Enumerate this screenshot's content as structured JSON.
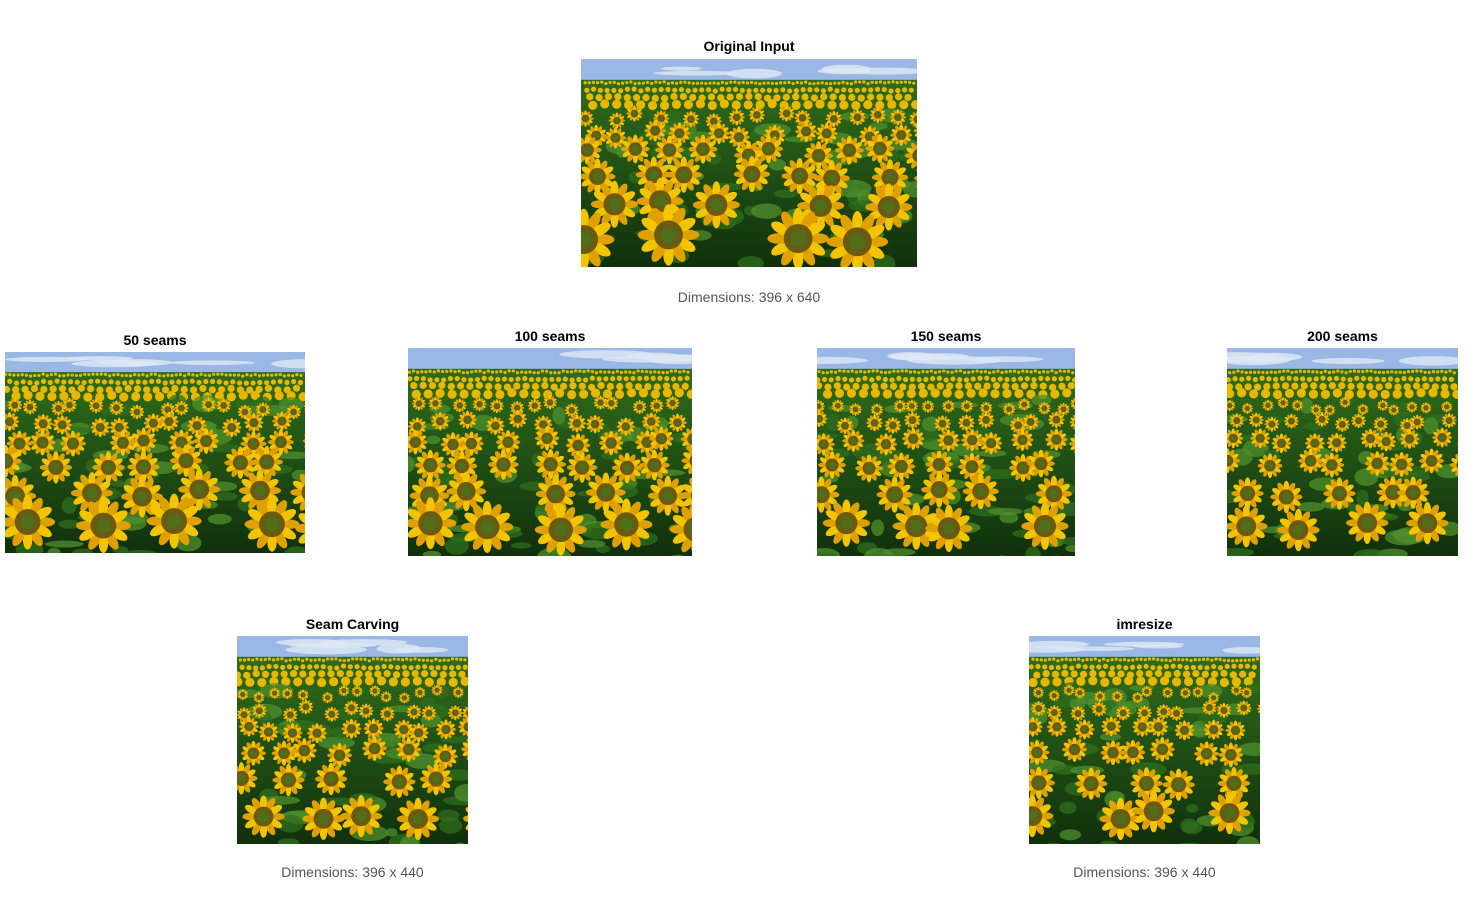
{
  "figure": {
    "original": {
      "title": "Original Input",
      "caption": "Dimensions: 396 x 640",
      "image": "sunflower-field"
    },
    "seam_steps": [
      {
        "title": "50 seams",
        "image": "sunflower-field"
      },
      {
        "title": "100 seams",
        "image": "sunflower-field"
      },
      {
        "title": "150 seams",
        "image": "sunflower-field"
      },
      {
        "title": "200 seams",
        "image": "sunflower-field"
      }
    ],
    "results": [
      {
        "title": "Seam Carving",
        "caption": "Dimensions: 396 x 440",
        "image": "sunflower-field"
      },
      {
        "title": "imresize",
        "caption": "Dimensions: 396 x 440",
        "image": "sunflower-field"
      }
    ]
  },
  "colors": {
    "sky": "#9ab7e6",
    "cloud": "#dfe8f5",
    "horizon_flowers": "#e8b800",
    "foliage_dark": "#10300c",
    "foliage_mid": "#2f6d1c",
    "leaf_light": "#4f8f2c",
    "petal": "#f5c400",
    "petal_dark": "#e0a000",
    "center_outer": "#6b5a12",
    "center_inner": "#4f6f1a"
  }
}
